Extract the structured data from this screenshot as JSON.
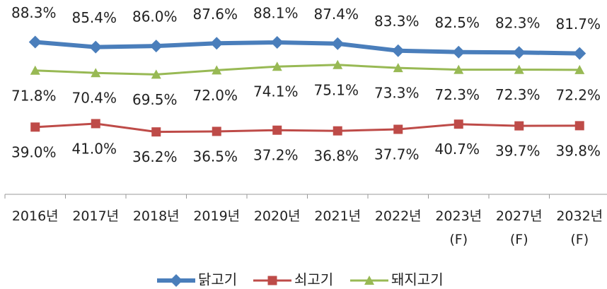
{
  "chart_data": {
    "type": "line",
    "categories": [
      "2016년",
      "2017년",
      "2018년",
      "2019년",
      "2020년",
      "2021년",
      "2022년",
      "2023년\n(F)",
      "2027년\n(F)",
      "2032년\n(F)"
    ],
    "series": [
      {
        "name": "닭고기",
        "color": "#4a7ebb",
        "marker": "diamond",
        "values": [
          88.3,
          85.4,
          86.0,
          87.6,
          88.1,
          87.4,
          83.3,
          82.5,
          82.3,
          81.7
        ],
        "value_labels": [
          "88.3%",
          "85.4%",
          "86.0%",
          "87.6%",
          "88.1%",
          "87.4%",
          "83.3%",
          "82.5%",
          "82.3%",
          "81.7%"
        ]
      },
      {
        "name": "쇠고기",
        "color": "#be4b48",
        "marker": "square",
        "values": [
          39.0,
          41.0,
          36.2,
          36.5,
          37.2,
          36.8,
          37.7,
          40.7,
          39.7,
          39.8
        ],
        "value_labels": [
          "39.0%",
          "41.0%",
          "36.2%",
          "36.5%",
          "37.2%",
          "36.8%",
          "37.7%",
          "40.7%",
          "39.7%",
          "39.8%"
        ]
      },
      {
        "name": "돼지고기",
        "color": "#98b954",
        "marker": "triangle",
        "values": [
          71.8,
          70.4,
          69.5,
          72.0,
          74.1,
          75.1,
          73.3,
          72.3,
          72.3,
          72.2
        ],
        "value_labels": [
          "71.8%",
          "70.4%",
          "69.5%",
          "72.0%",
          "74.1%",
          "75.1%",
          "73.3%",
          "72.3%",
          "72.3%",
          "72.2%"
        ]
      }
    ],
    "ylim": [
      0,
      100
    ],
    "legend": "bottom"
  }
}
